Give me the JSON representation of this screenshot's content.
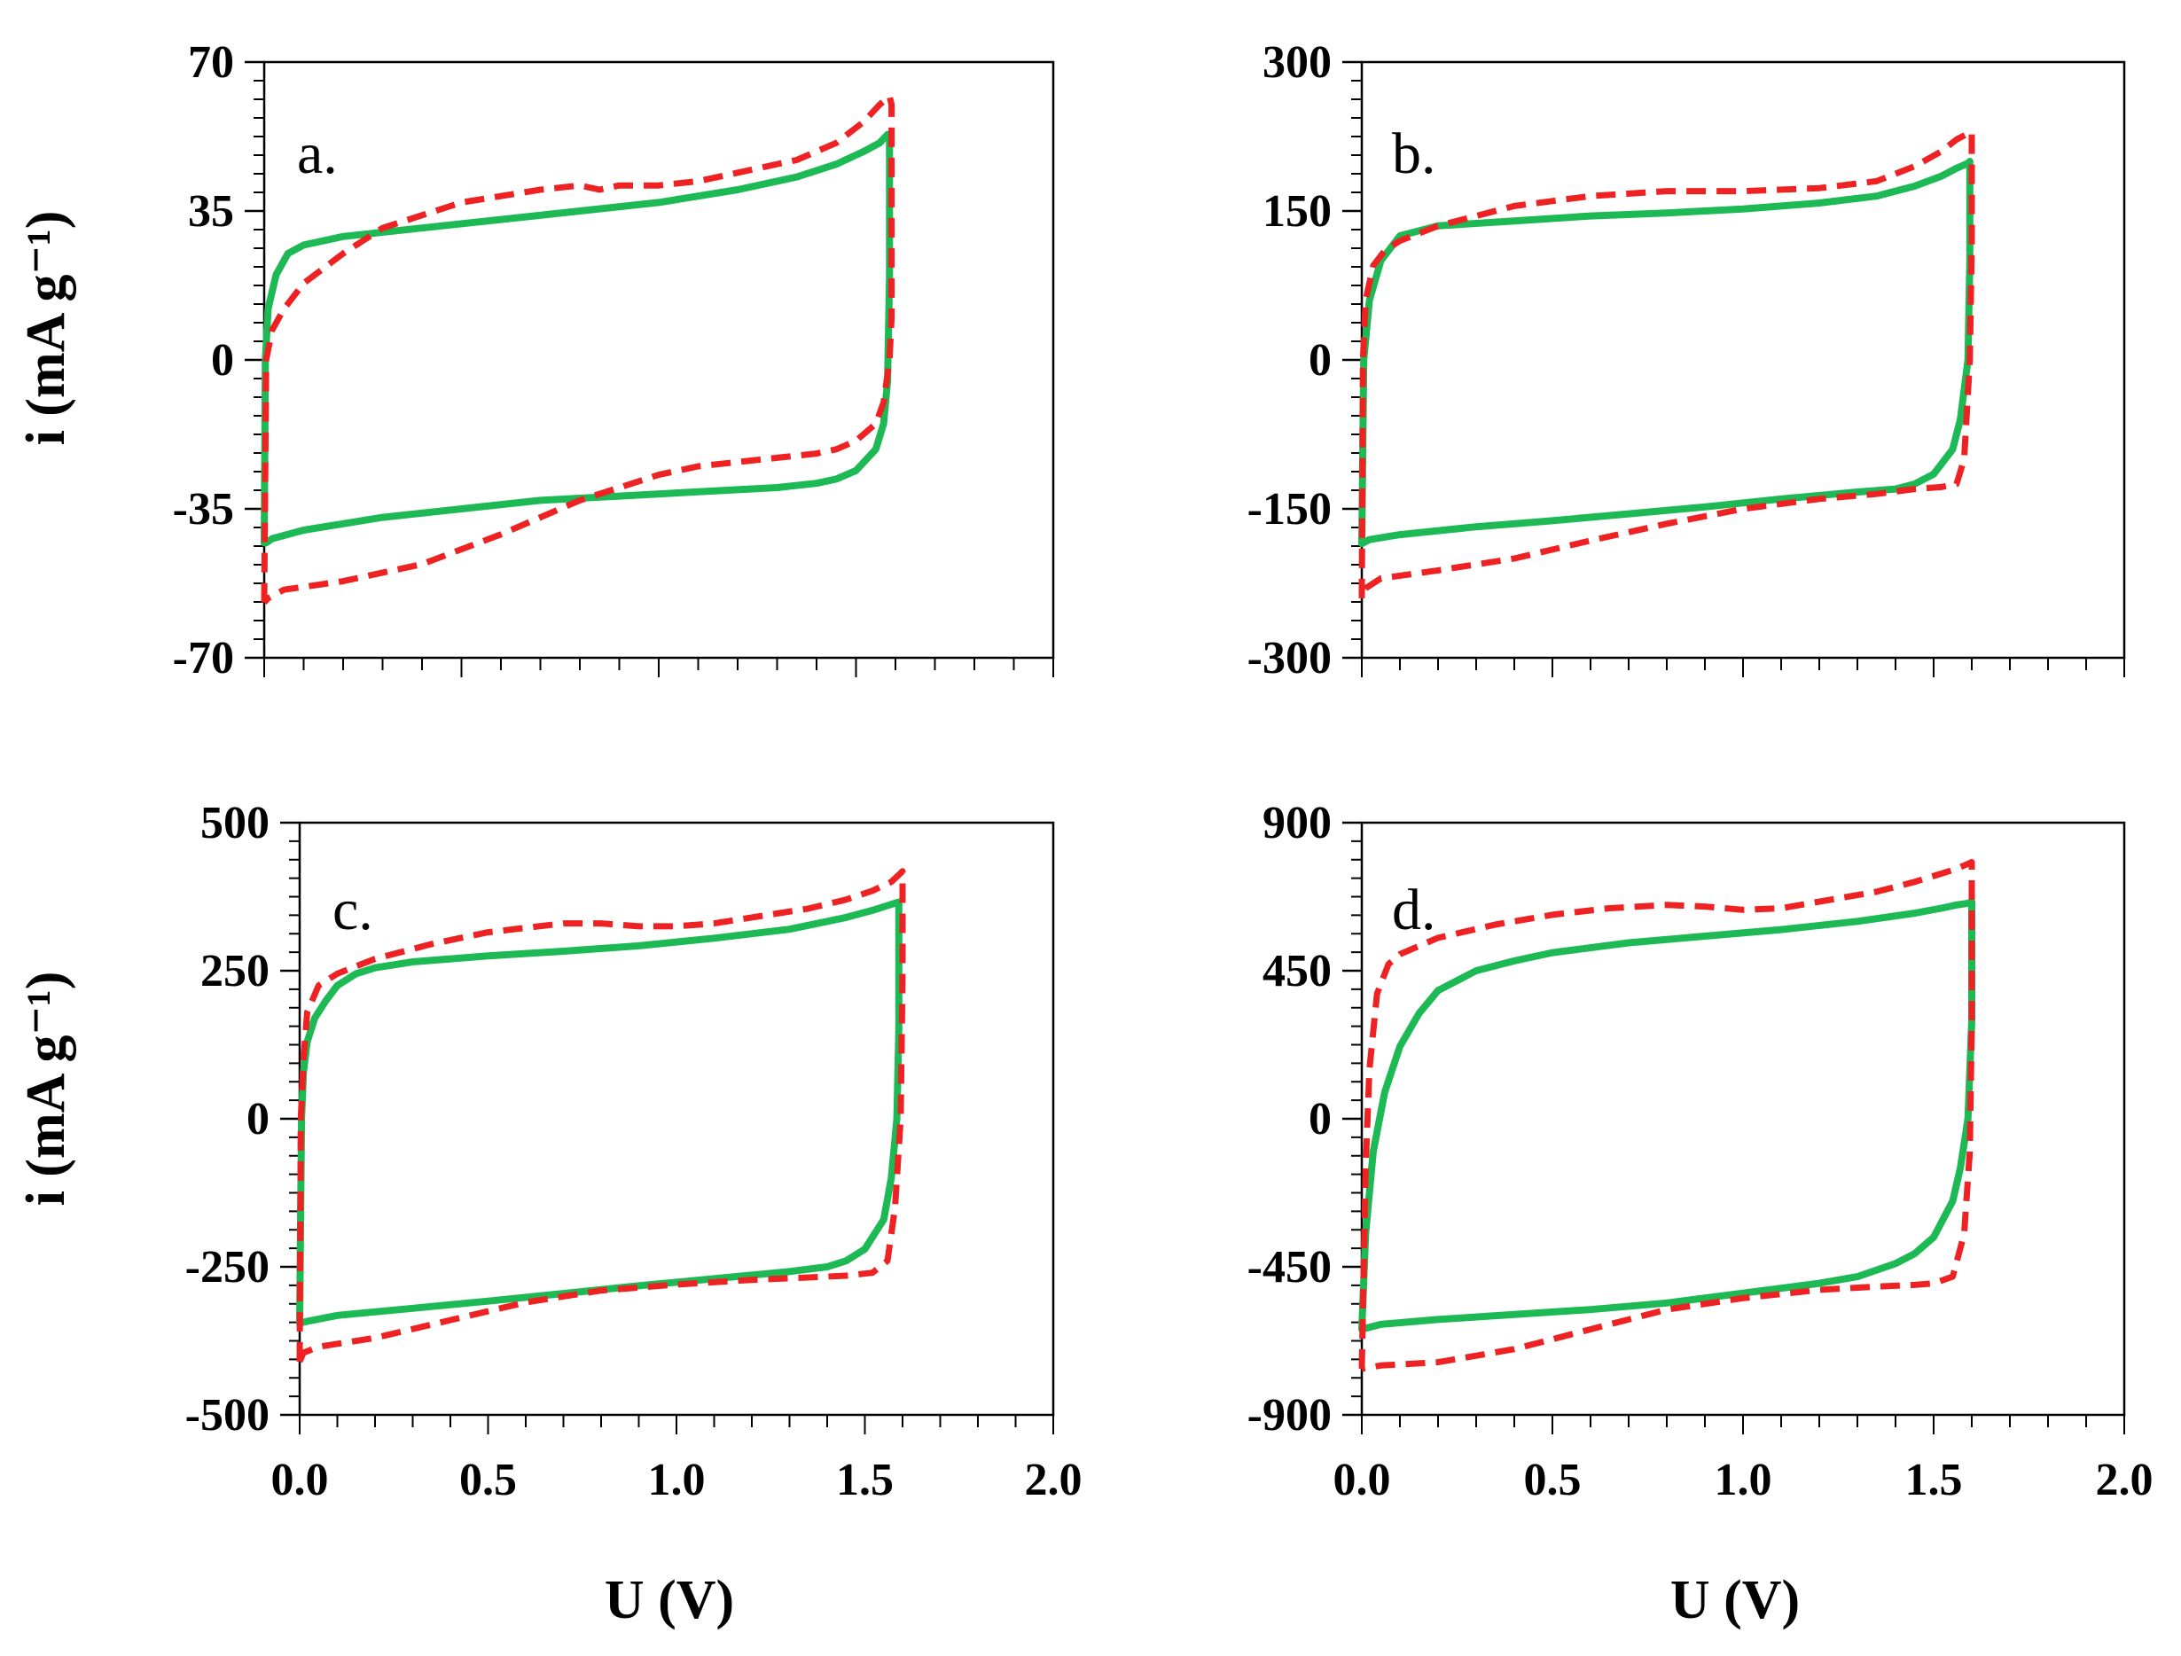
{
  "figure": {
    "x_title": "U (V)",
    "y_title": "i (mA g⁻¹)"
  },
  "chart_data": [
    {
      "type": "line",
      "panel": "a.",
      "xlim": [
        0,
        2
      ],
      "ylim": [
        -70,
        70
      ],
      "y_ticks": [
        "70",
        "35",
        "0",
        "-35",
        "-70"
      ],
      "x_ticks": [],
      "xlabel": "",
      "ylabel": "i (mA g⁻¹)",
      "series": [
        {
          "name": "solid",
          "color": "#1db954",
          "style": "solid",
          "x": [
            0,
            0.003,
            0.01,
            0.03,
            0.06,
            0.1,
            0.2,
            0.4,
            0.6,
            0.8,
            1.0,
            1.2,
            1.35,
            1.45,
            1.52,
            1.56,
            1.58,
            1.585,
            1.585,
            1.58,
            1.57,
            1.55,
            1.5,
            1.45,
            1.4,
            1.3,
            1.1,
            0.9,
            0.7,
            0.5,
            0.3,
            0.1,
            0.02,
            0.005,
            0.0
          ],
          "y": [
            -43,
            0,
            12,
            20,
            25,
            27,
            29,
            31,
            33,
            35,
            37,
            40,
            43,
            46,
            49,
            51,
            53,
            53,
            20,
            -5,
            -15,
            -21,
            -26,
            -28,
            -29,
            -30,
            -31,
            -32,
            -33,
            -35,
            -37,
            -40,
            -42,
            -43,
            -43
          ]
        },
        {
          "name": "dashed",
          "color": "#ee2222",
          "style": "dashed",
          "x": [
            0,
            0.005,
            0.02,
            0.05,
            0.1,
            0.2,
            0.3,
            0.5,
            0.7,
            0.8,
            0.85,
            0.9,
            1.0,
            1.1,
            1.2,
            1.35,
            1.45,
            1.52,
            1.56,
            1.585,
            1.59,
            1.59,
            1.585,
            1.57,
            1.55,
            1.5,
            1.45,
            1.4,
            1.3,
            1.2,
            1.1,
            1.0,
            0.9,
            0.8,
            0.6,
            0.4,
            0.2,
            0.05,
            0.01,
            0.0
          ],
          "y": [
            -57,
            0,
            7,
            12,
            18,
            25,
            31,
            37,
            40,
            41,
            40,
            41,
            41,
            42,
            44,
            47,
            51,
            56,
            60,
            62,
            60,
            10,
            0,
            -10,
            -15,
            -19,
            -21,
            -22,
            -23,
            -24,
            -25,
            -27,
            -30,
            -33,
            -41,
            -48,
            -52,
            -54,
            -56,
            -57
          ]
        }
      ]
    },
    {
      "type": "line",
      "panel": "b.",
      "xlim": [
        0,
        2
      ],
      "ylim": [
        -300,
        300
      ],
      "y_ticks": [
        "300",
        "150",
        "0",
        "-150",
        "-300"
      ],
      "x_ticks": [],
      "xlabel": "",
      "ylabel": "",
      "series": [
        {
          "name": "solid",
          "color": "#1db954",
          "style": "solid",
          "x": [
            0,
            0.005,
            0.02,
            0.05,
            0.1,
            0.2,
            0.4,
            0.6,
            0.8,
            1.0,
            1.2,
            1.35,
            1.45,
            1.52,
            1.56,
            1.59,
            1.595,
            1.595,
            1.59,
            1.57,
            1.55,
            1.5,
            1.45,
            1.4,
            1.3,
            1.1,
            0.9,
            0.7,
            0.5,
            0.3,
            0.1,
            0.02,
            0.005,
            0.0
          ],
          "y": [
            -185,
            0,
            60,
            100,
            125,
            135,
            140,
            145,
            148,
            152,
            158,
            165,
            175,
            185,
            193,
            198,
            200,
            100,
            0,
            -60,
            -90,
            -115,
            -125,
            -130,
            -133,
            -140,
            -148,
            -155,
            -162,
            -168,
            -176,
            -181,
            -184,
            -185
          ]
        },
        {
          "name": "dashed",
          "color": "#ee2222",
          "style": "dashed",
          "x": [
            0,
            0.003,
            0.01,
            0.03,
            0.06,
            0.1,
            0.2,
            0.4,
            0.6,
            0.8,
            1.0,
            1.2,
            1.35,
            1.45,
            1.52,
            1.56,
            1.59,
            1.6,
            1.6,
            1.595,
            1.58,
            1.56,
            1.52,
            1.45,
            1.35,
            1.2,
            1.0,
            0.8,
            0.6,
            0.4,
            0.2,
            0.05,
            0.01,
            0.0
          ],
          "y": [
            -240,
            0,
            60,
            95,
            110,
            120,
            135,
            155,
            165,
            170,
            170,
            173,
            180,
            195,
            210,
            222,
            228,
            230,
            120,
            0,
            -100,
            -125,
            -128,
            -130,
            -135,
            -140,
            -150,
            -165,
            -182,
            -200,
            -212,
            -220,
            -230,
            -240
          ]
        }
      ]
    },
    {
      "type": "line",
      "panel": "c.",
      "xlim": [
        0,
        2
      ],
      "ylim": [
        -500,
        500
      ],
      "y_ticks": [
        "500",
        "250",
        "0",
        "-250",
        "-500"
      ],
      "x_ticks": [
        "0.0",
        "0.5",
        "1.0",
        "1.5",
        "2.0"
      ],
      "xlabel": "U (V)",
      "ylabel": "i (mA g⁻¹)",
      "series": [
        {
          "name": "solid",
          "color": "#1db954",
          "style": "solid",
          "x": [
            0,
            0.005,
            0.01,
            0.02,
            0.04,
            0.07,
            0.1,
            0.15,
            0.2,
            0.3,
            0.5,
            0.7,
            0.9,
            1.1,
            1.3,
            1.45,
            1.52,
            1.56,
            1.585,
            1.59,
            1.59,
            1.585,
            1.57,
            1.55,
            1.5,
            1.45,
            1.4,
            1.3,
            1.1,
            0.9,
            0.7,
            0.5,
            0.3,
            0.1,
            0.02,
            0.0
          ],
          "y": [
            -345,
            0,
            80,
            130,
            170,
            200,
            225,
            245,
            255,
            265,
            275,
            283,
            292,
            305,
            320,
            340,
            352,
            360,
            365,
            366,
            150,
            0,
            -100,
            -170,
            -220,
            -240,
            -250,
            -258,
            -270,
            -282,
            -295,
            -308,
            -320,
            -332,
            -342,
            -345
          ]
        },
        {
          "name": "dashed",
          "color": "#ee2222",
          "style": "dashed",
          "x": [
            0,
            0.003,
            0.01,
            0.02,
            0.05,
            0.1,
            0.2,
            0.35,
            0.5,
            0.7,
            0.8,
            0.9,
            1.0,
            1.1,
            1.2,
            1.35,
            1.45,
            1.52,
            1.57,
            1.595,
            1.6,
            1.6,
            1.595,
            1.58,
            1.56,
            1.52,
            1.45,
            1.35,
            1.2,
            1.0,
            0.8,
            0.6,
            0.4,
            0.2,
            0.05,
            0.01,
            0.0
          ],
          "y": [
            -410,
            0,
            100,
            180,
            225,
            245,
            270,
            295,
            315,
            330,
            330,
            325,
            325,
            330,
            340,
            355,
            370,
            385,
            400,
            415,
            418,
            250,
            0,
            -150,
            -240,
            -260,
            -265,
            -268,
            -272,
            -280,
            -290,
            -310,
            -340,
            -370,
            -385,
            -395,
            -410
          ]
        }
      ]
    },
    {
      "type": "line",
      "panel": "d.",
      "xlim": [
        0,
        2
      ],
      "ylim": [
        -900,
        900
      ],
      "y_ticks": [
        "900",
        "450",
        "0",
        "-450",
        "-900"
      ],
      "x_ticks": [
        "0.0",
        "0.5",
        "1.0",
        "1.5",
        "2.0"
      ],
      "xlabel": "U (V)",
      "ylabel": "",
      "series": [
        {
          "name": "solid",
          "color": "#1db954",
          "style": "solid",
          "x": [
            0,
            0.01,
            0.03,
            0.06,
            0.1,
            0.15,
            0.2,
            0.3,
            0.4,
            0.5,
            0.7,
            0.9,
            1.1,
            1.3,
            1.45,
            1.52,
            1.56,
            1.59,
            1.6,
            1.6,
            1.59,
            1.57,
            1.55,
            1.5,
            1.45,
            1.4,
            1.3,
            1.2,
            1.0,
            0.8,
            0.6,
            0.4,
            0.2,
            0.05,
            0.0
          ],
          "y": [
            -640,
            -350,
            -100,
            80,
            220,
            320,
            390,
            450,
            480,
            505,
            535,
            555,
            575,
            600,
            625,
            640,
            650,
            655,
            660,
            300,
            0,
            -150,
            -250,
            -360,
            -410,
            -440,
            -480,
            -500,
            -530,
            -560,
            -580,
            -595,
            -610,
            -625,
            -640
          ]
        },
        {
          "name": "dashed",
          "color": "#ee2222",
          "style": "dashed",
          "x": [
            0,
            0.005,
            0.01,
            0.02,
            0.04,
            0.07,
            0.1,
            0.2,
            0.35,
            0.5,
            0.65,
            0.8,
            0.9,
            1.0,
            1.1,
            1.2,
            1.35,
            1.45,
            1.52,
            1.56,
            1.59,
            1.6,
            1.6,
            1.595,
            1.58,
            1.55,
            1.5,
            1.45,
            1.35,
            1.2,
            1.0,
            0.8,
            0.6,
            0.4,
            0.2,
            0.05,
            0.0
          ],
          "y": [
            -760,
            -450,
            -150,
            150,
            380,
            470,
            500,
            550,
            590,
            620,
            640,
            650,
            645,
            635,
            640,
            660,
            690,
            720,
            745,
            760,
            775,
            780,
            300,
            -100,
            -350,
            -480,
            -500,
            -505,
            -510,
            -520,
            -545,
            -580,
            -640,
            -700,
            -740,
            -750,
            -760
          ]
        }
      ]
    }
  ]
}
